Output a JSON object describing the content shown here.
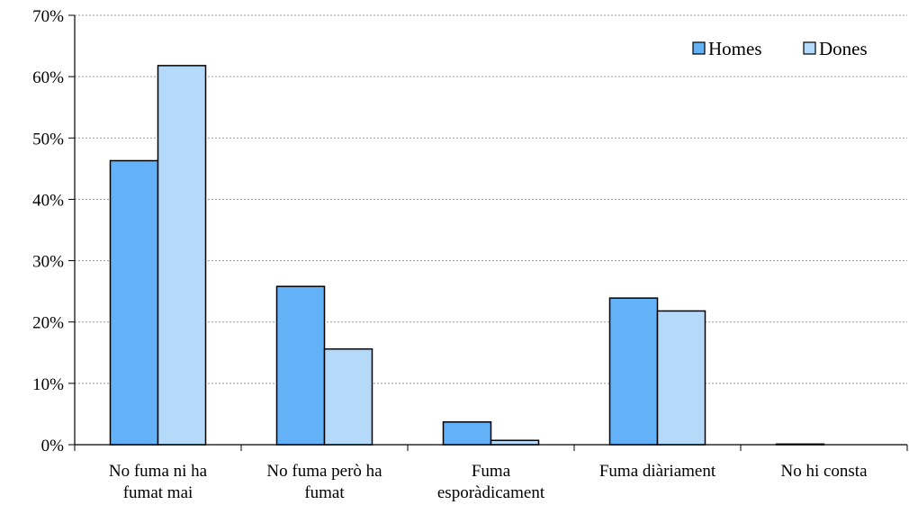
{
  "chart_data": {
    "type": "bar",
    "categories": [
      [
        "No fuma ni ha",
        "fumat mai"
      ],
      [
        "No fuma però ha",
        "fumat"
      ],
      [
        "Fuma",
        "esporàdicament"
      ],
      [
        "Fuma diàriament"
      ],
      [
        "No hi consta"
      ]
    ],
    "series": [
      {
        "name": "Homes",
        "values": [
          46.3,
          25.8,
          3.7,
          23.9,
          0.1
        ],
        "color": "#63b1f7"
      },
      {
        "name": "Dones",
        "values": [
          61.8,
          15.6,
          0.7,
          21.8,
          0.0
        ],
        "color": "#b5daf9"
      }
    ],
    "ylim": [
      0,
      70
    ],
    "yticks": [
      0,
      10,
      20,
      30,
      40,
      50,
      60,
      70
    ],
    "ytick_labels": [
      "0%",
      "10%",
      "20%",
      "30%",
      "40%",
      "50%",
      "60%",
      "70%"
    ],
    "grid": "horizontal dotted",
    "legend_position": "top-right"
  }
}
